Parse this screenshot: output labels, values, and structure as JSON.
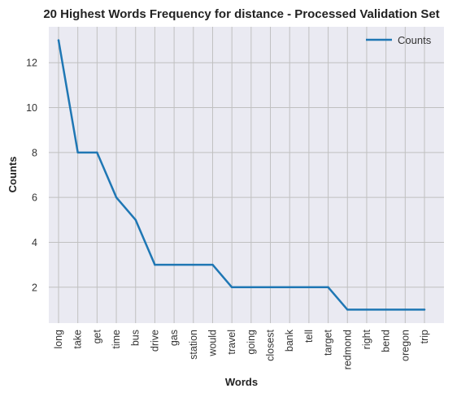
{
  "chart_data": {
    "type": "line",
    "title": "20 Highest Words Frequency for distance - Processed Validation Set",
    "xlabel": "Words",
    "ylabel": "Counts",
    "categories": [
      "long",
      "take",
      "get",
      "time",
      "bus",
      "drive",
      "gas",
      "station",
      "would",
      "travel",
      "going",
      "closest",
      "bank",
      "tell",
      "target",
      "redmond",
      "right",
      "bend",
      "oregon",
      "trip"
    ],
    "series": [
      {
        "name": "Counts",
        "values": [
          13,
          8,
          8,
          6,
          5,
          3,
          3,
          3,
          3,
          2,
          2,
          2,
          2,
          2,
          2,
          1,
          1,
          1,
          1,
          1
        ]
      }
    ],
    "ylim": [
      0.4,
      13.6
    ],
    "yticks": [
      2,
      4,
      6,
      8,
      10,
      12
    ],
    "grid": true,
    "legend": "top-right",
    "colors": {
      "line": "#1f77b4",
      "plot_background": "#eaeaf2",
      "grid": "#c0c0c0"
    }
  }
}
